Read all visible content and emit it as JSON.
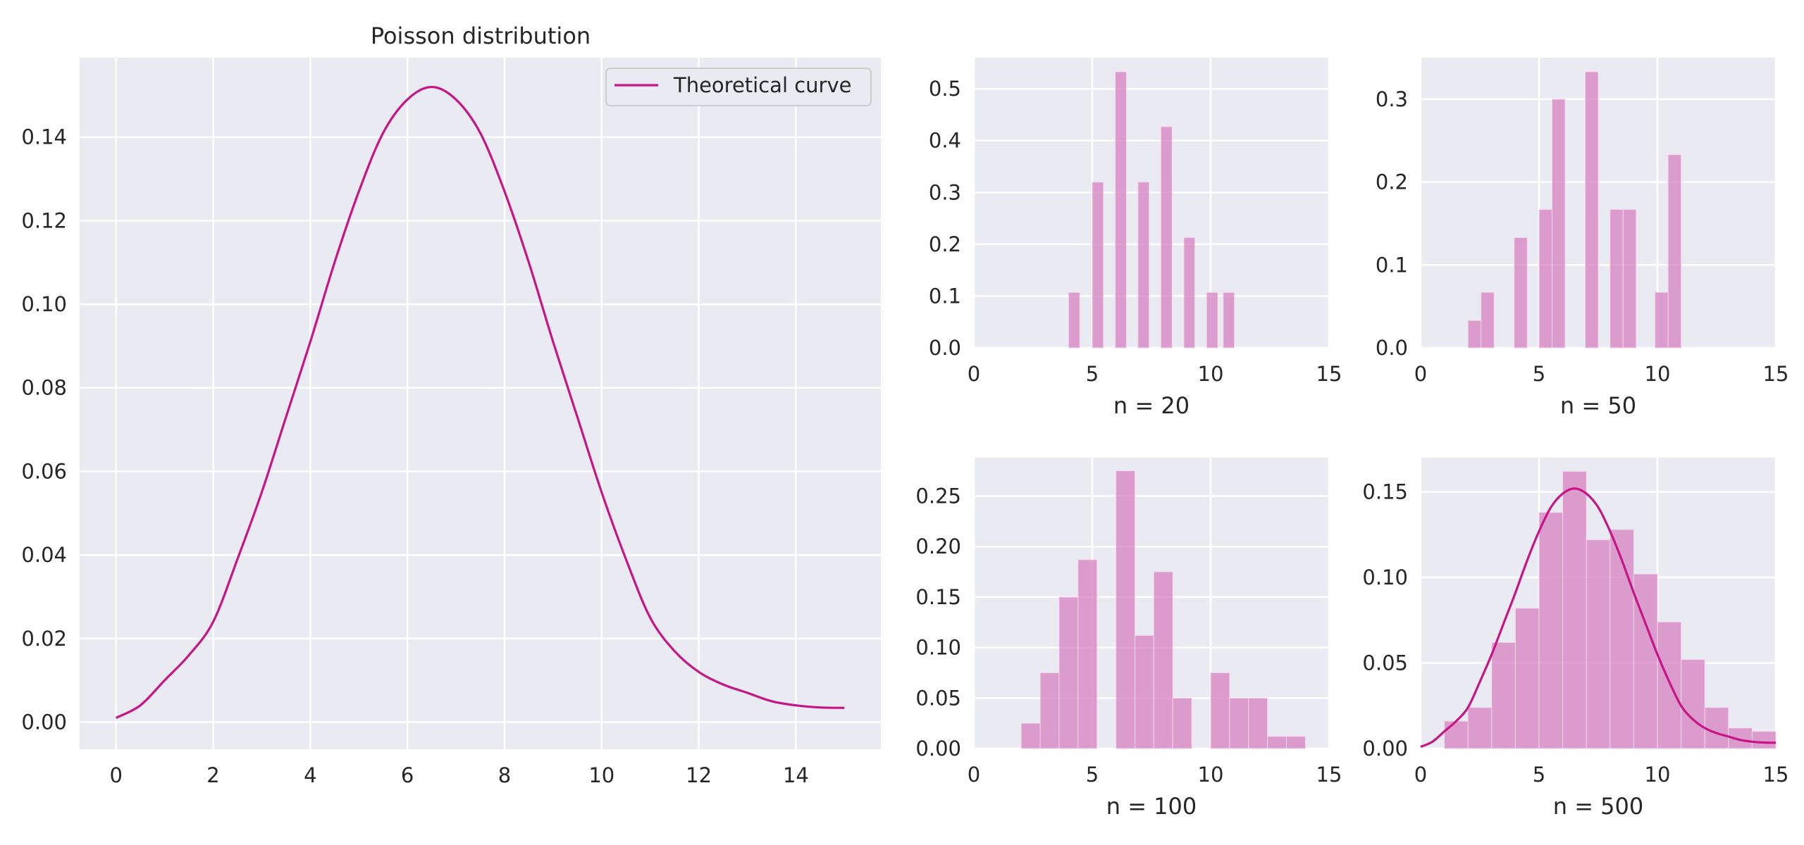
{
  "colors": {
    "background": "#ffffff",
    "axes_face": "#eaeaf2",
    "grid": "#ffffff",
    "curve": "#c71585",
    "bar": "#d88ac5",
    "bar_edge": "#f2d6ea",
    "text": "#262626"
  },
  "chart_data": [
    {
      "type": "line",
      "title": "Poisson distribution",
      "xlabel": "",
      "ylabel": "",
      "legend": {
        "entries": [
          "Theoretical curve"
        ],
        "placement": "upper right"
      },
      "grid": true,
      "xlim": [
        -0.75,
        15.75
      ],
      "ylim": [
        -0.0065,
        0.159
      ],
      "xticks": [
        0,
        2,
        4,
        6,
        8,
        10,
        12,
        14
      ],
      "xtick_labels": [
        "0",
        "2",
        "4",
        "6",
        "8",
        "10",
        "12",
        "14"
      ],
      "yticks": [
        0.0,
        0.02,
        0.04,
        0.06,
        0.08,
        0.1,
        0.12,
        0.14
      ],
      "ytick_labels": [
        "0.00",
        "0.02",
        "0.04",
        "0.06",
        "0.08",
        "0.10",
        "0.12",
        "0.14"
      ],
      "series": [
        {
          "name": "Theoretical curve",
          "x": [
            0,
            0.5,
            1,
            1.5,
            2,
            2.5,
            3,
            3.5,
            4,
            4.5,
            5,
            5.5,
            6,
            6.5,
            7,
            7.5,
            8,
            8.5,
            9,
            9.5,
            10,
            10.5,
            11,
            11.5,
            12,
            12.5,
            13,
            13.5,
            14,
            14.5,
            15
          ],
          "y": [
            0.001,
            0.004,
            0.01,
            0.016,
            0.024,
            0.039,
            0.055,
            0.073,
            0.091,
            0.11,
            0.127,
            0.141,
            0.149,
            0.152,
            0.149,
            0.141,
            0.127,
            0.11,
            0.091,
            0.073,
            0.055,
            0.039,
            0.025,
            0.017,
            0.012,
            0.009,
            0.007,
            0.005,
            0.004,
            0.0035,
            0.0034
          ]
        }
      ]
    },
    {
      "type": "bar",
      "xlabel": "n = 20",
      "grid": true,
      "xlim": [
        0,
        15
      ],
      "ylim": [
        0,
        0.56
      ],
      "xticks": [
        0,
        5,
        10,
        15
      ],
      "xtick_labels": [
        "0",
        "5",
        "10",
        "15"
      ],
      "yticks": [
        0.0,
        0.1,
        0.2,
        0.3,
        0.4,
        0.5
      ],
      "ytick_labels": [
        "0.0",
        "0.1",
        "0.2",
        "0.3",
        "0.4",
        "0.5"
      ],
      "bins": [
        {
          "x0": 4.0,
          "x1": 4.47,
          "y": 0.107
        },
        {
          "x0": 5.0,
          "x1": 5.47,
          "y": 0.32
        },
        {
          "x0": 5.97,
          "x1": 6.44,
          "y": 0.533
        },
        {
          "x0": 6.93,
          "x1": 7.4,
          "y": 0.32
        },
        {
          "x0": 7.9,
          "x1": 8.37,
          "y": 0.427
        },
        {
          "x0": 8.87,
          "x1": 9.33,
          "y": 0.213
        },
        {
          "x0": 9.83,
          "x1": 10.3,
          "y": 0.107
        },
        {
          "x0": 10.53,
          "x1": 11.0,
          "y": 0.107
        }
      ]
    },
    {
      "type": "bar",
      "xlabel": "n = 50",
      "grid": true,
      "xlim": [
        0,
        15
      ],
      "ylim": [
        0,
        0.35
      ],
      "xticks": [
        0,
        5,
        10,
        15
      ],
      "xtick_labels": [
        "0",
        "5",
        "10",
        "15"
      ],
      "yticks": [
        0.0,
        0.1,
        0.2,
        0.3
      ],
      "ytick_labels": [
        "0.0",
        "0.1",
        "0.2",
        "0.3"
      ],
      "bins": [
        {
          "x0": 2.0,
          "x1": 2.55,
          "y": 0.033
        },
        {
          "x0": 2.55,
          "x1": 3.1,
          "y": 0.067
        },
        {
          "x0": 3.95,
          "x1": 4.5,
          "y": 0.133
        },
        {
          "x0": 5.0,
          "x1": 5.55,
          "y": 0.167
        },
        {
          "x0": 5.55,
          "x1": 6.1,
          "y": 0.3
        },
        {
          "x0": 6.95,
          "x1": 7.5,
          "y": 0.333
        },
        {
          "x0": 8.0,
          "x1": 8.55,
          "y": 0.167
        },
        {
          "x0": 8.55,
          "x1": 9.1,
          "y": 0.167
        },
        {
          "x0": 9.9,
          "x1": 10.45,
          "y": 0.067
        },
        {
          "x0": 10.45,
          "x1": 11.0,
          "y": 0.233
        }
      ]
    },
    {
      "type": "bar",
      "xlabel": "n = 100",
      "grid": true,
      "xlim": [
        0,
        15
      ],
      "ylim": [
        0,
        0.288
      ],
      "xticks": [
        0,
        5,
        10,
        15
      ],
      "xtick_labels": [
        "0",
        "5",
        "10",
        "15"
      ],
      "yticks": [
        0.0,
        0.05,
        0.1,
        0.15,
        0.2,
        0.25
      ],
      "ytick_labels": [
        "0.00",
        "0.05",
        "0.10",
        "0.15",
        "0.20",
        "0.25"
      ],
      "bins": [
        {
          "x0": 2.0,
          "x1": 2.8,
          "y": 0.025
        },
        {
          "x0": 2.8,
          "x1": 3.6,
          "y": 0.075
        },
        {
          "x0": 3.6,
          "x1": 4.4,
          "y": 0.15
        },
        {
          "x0": 4.4,
          "x1": 5.2,
          "y": 0.187
        },
        {
          "x0": 6.0,
          "x1": 6.8,
          "y": 0.275
        },
        {
          "x0": 6.8,
          "x1": 7.6,
          "y": 0.112
        },
        {
          "x0": 7.6,
          "x1": 8.4,
          "y": 0.175
        },
        {
          "x0": 8.4,
          "x1": 9.2,
          "y": 0.05
        },
        {
          "x0": 10.0,
          "x1": 10.8,
          "y": 0.075
        },
        {
          "x0": 10.8,
          "x1": 11.6,
          "y": 0.05
        },
        {
          "x0": 11.6,
          "x1": 12.4,
          "y": 0.05
        },
        {
          "x0": 12.4,
          "x1": 13.2,
          "y": 0.012
        },
        {
          "x0": 13.2,
          "x1": 14.0,
          "y": 0.012
        }
      ]
    },
    {
      "type": "bar",
      "xlabel": "n = 500",
      "grid": true,
      "xlim": [
        0,
        15
      ],
      "ylim": [
        0,
        0.17
      ],
      "xticks": [
        0,
        5,
        10,
        15
      ],
      "xtick_labels": [
        "0",
        "5",
        "10",
        "15"
      ],
      "yticks": [
        0.0,
        0.05,
        0.1,
        0.15
      ],
      "ytick_labels": [
        "0.00",
        "0.05",
        "0.10",
        "0.15"
      ],
      "bins": [
        {
          "x0": 1.0,
          "x1": 2.0,
          "y": 0.016
        },
        {
          "x0": 2.0,
          "x1": 3.0,
          "y": 0.024
        },
        {
          "x0": 3.0,
          "x1": 4.0,
          "y": 0.062
        },
        {
          "x0": 4.0,
          "x1": 5.0,
          "y": 0.082
        },
        {
          "x0": 5.0,
          "x1": 6.0,
          "y": 0.138
        },
        {
          "x0": 6.0,
          "x1": 7.0,
          "y": 0.162
        },
        {
          "x0": 7.0,
          "x1": 8.0,
          "y": 0.122
        },
        {
          "x0": 8.0,
          "x1": 9.0,
          "y": 0.128
        },
        {
          "x0": 9.0,
          "x1": 10.0,
          "y": 0.102
        },
        {
          "x0": 10.0,
          "x1": 11.0,
          "y": 0.074
        },
        {
          "x0": 11.0,
          "x1": 12.0,
          "y": 0.052
        },
        {
          "x0": 12.0,
          "x1": 13.0,
          "y": 0.024
        },
        {
          "x0": 13.0,
          "x1": 14.0,
          "y": 0.012
        },
        {
          "x0": 14.0,
          "x1": 15.0,
          "y": 0.01
        }
      ],
      "overlay": {
        "x": [
          0,
          0.5,
          1,
          1.5,
          2,
          2.5,
          3,
          3.5,
          4,
          4.5,
          5,
          5.5,
          6,
          6.5,
          7,
          7.5,
          8,
          8.5,
          9,
          9.5,
          10,
          10.5,
          11,
          11.5,
          12,
          12.5,
          13,
          13.5,
          14,
          14.5,
          15
        ],
        "y": [
          0.001,
          0.004,
          0.01,
          0.016,
          0.024,
          0.039,
          0.055,
          0.073,
          0.091,
          0.11,
          0.127,
          0.141,
          0.149,
          0.152,
          0.149,
          0.141,
          0.127,
          0.11,
          0.091,
          0.073,
          0.055,
          0.039,
          0.025,
          0.017,
          0.012,
          0.009,
          0.007,
          0.005,
          0.004,
          0.0035,
          0.0034
        ]
      }
    }
  ]
}
